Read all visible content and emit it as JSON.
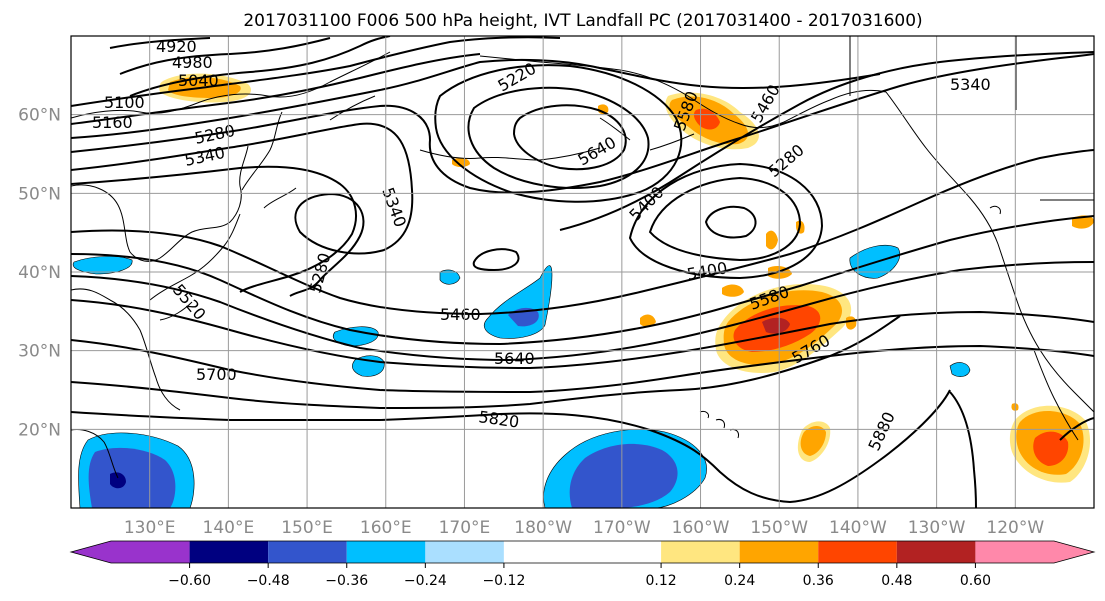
{
  "title": "2017031100 F006 500 hPa height, IVT Landfall PC (2017031400 - 2017031600)",
  "map": {
    "latitude_labels": [
      "60°N",
      "50°N",
      "40°N",
      "30°N",
      "20°N"
    ],
    "longitude_labels": [
      "130°E",
      "140°E",
      "150°E",
      "160°E",
      "170°E",
      "180°W",
      "170°W",
      "160°W",
      "150°W",
      "140°W",
      "130°W",
      "120°W"
    ],
    "lon_range": [
      120,
      250
    ],
    "lat_range": [
      10,
      70
    ],
    "height_contour_labels": [
      "4920",
      "4980",
      "5040",
      "5100",
      "5160",
      "5220",
      "5280",
      "5340",
      "5400",
      "5460",
      "5520",
      "5580",
      "5640",
      "5700",
      "5760",
      "5820",
      "5880"
    ]
  },
  "colorbar": {
    "tick_labels": [
      "−0.60",
      "−0.48",
      "−0.36",
      "−0.24",
      "−0.12",
      "0.12",
      "0.24",
      "0.36",
      "0.48",
      "0.60"
    ],
    "ticks": [
      -0.6,
      -0.48,
      -0.36,
      -0.24,
      -0.12,
      0.12,
      0.24,
      0.36,
      0.48,
      0.6
    ],
    "colors": [
      "#9933cc",
      "#000080",
      "#3355cc",
      "#00bfff",
      "#aadfff",
      "#ffffff",
      "#ffe680",
      "#ffa500",
      "#ff4500",
      "#b22222",
      "#ff88aa"
    ]
  },
  "style": {
    "negative_colors": [
      "#3355cc",
      "#00bfff",
      "#000080"
    ],
    "positive_colors": [
      "#ffe680",
      "#ffa500",
      "#ff4500",
      "#b22222"
    ]
  }
}
